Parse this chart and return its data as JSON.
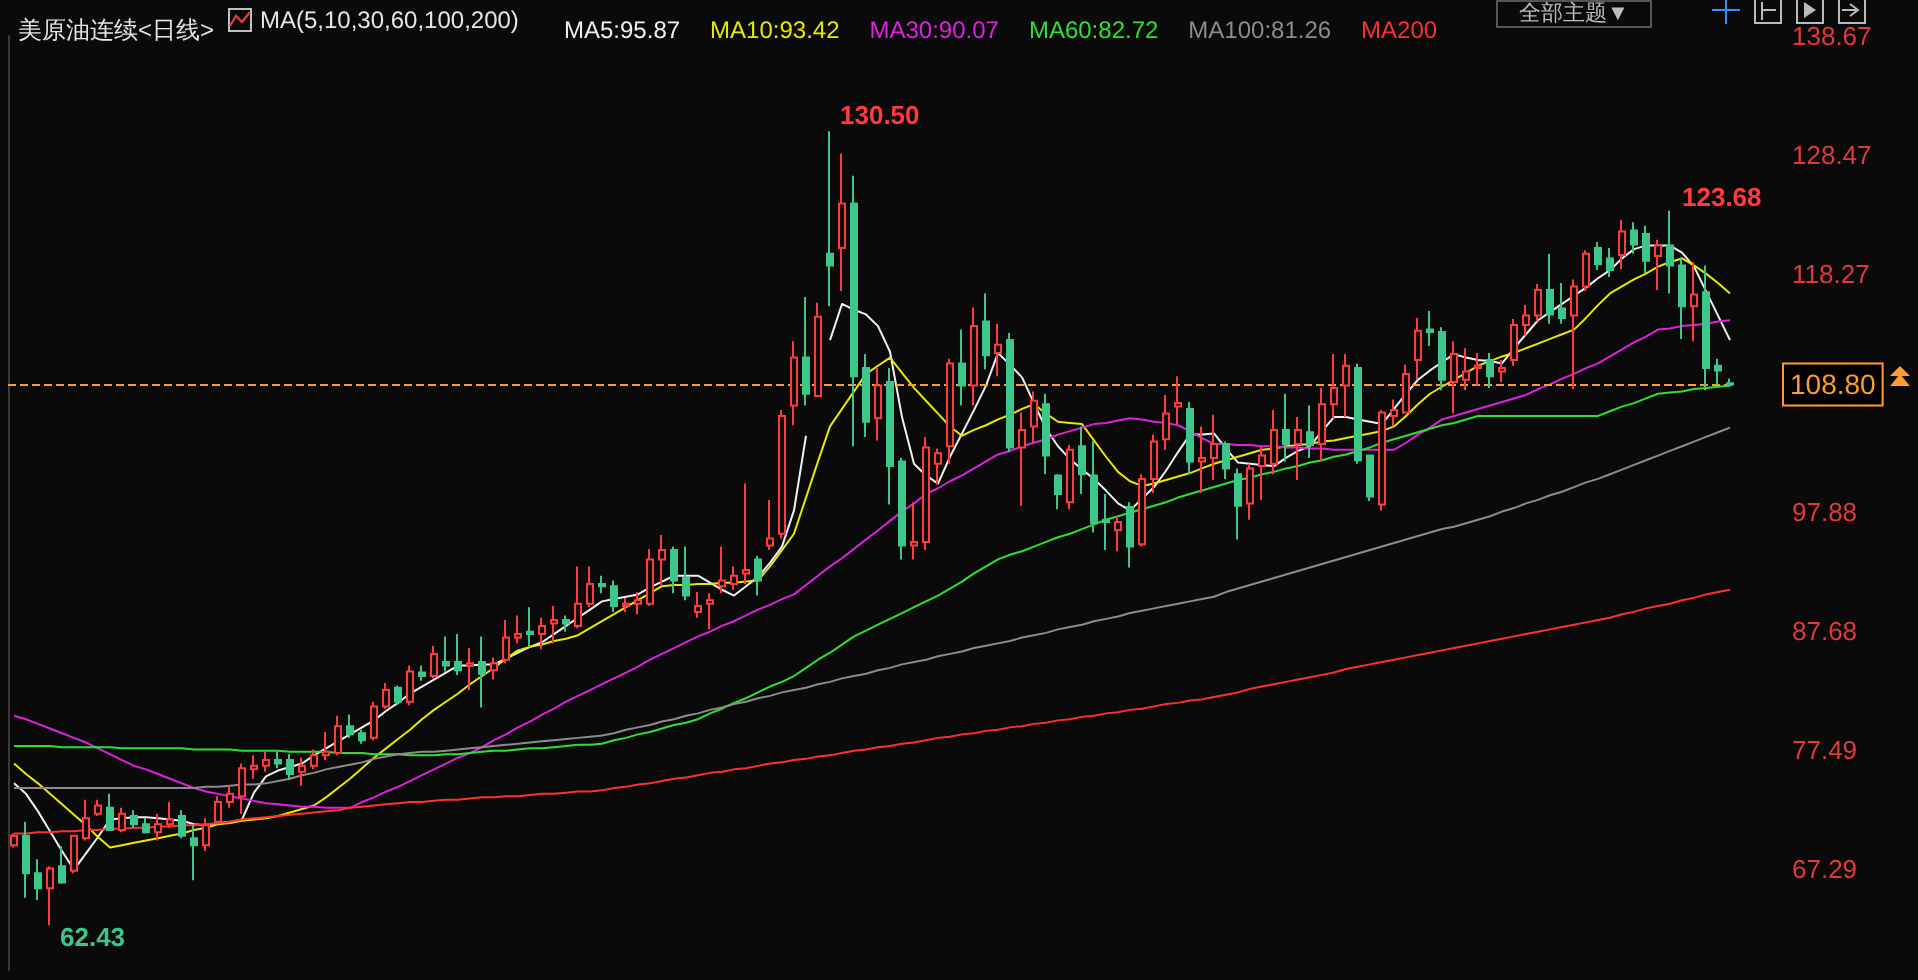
{
  "chart_data": {
    "type": "candlestick",
    "title": "美原油连续<日线>",
    "legend_title": "MA(5,10,30,60,100,200)",
    "legend": "top",
    "grid": false,
    "tick_labels": "y",
    "categories": [
      null,
      null,
      null,
      null,
      null,
      null,
      null,
      null,
      null,
      null,
      null,
      null,
      null,
      null,
      null,
      null,
      null,
      null,
      null,
      null,
      null,
      null,
      null,
      null,
      null,
      null,
      null,
      null,
      null,
      null,
      null,
      null,
      null,
      null,
      null,
      null,
      null,
      null,
      null,
      null,
      null,
      null,
      null,
      null,
      null,
      null,
      null,
      null,
      null,
      null,
      null,
      null,
      null,
      null,
      null,
      null,
      null,
      null,
      null,
      null,
      null,
      null,
      null,
      null,
      null,
      null,
      null,
      null,
      null,
      null,
      null,
      null,
      null,
      null,
      null,
      null,
      null,
      null,
      null,
      null,
      null,
      null,
      null,
      null,
      null,
      null,
      null,
      null,
      null,
      null,
      null,
      null,
      null,
      null,
      null,
      null,
      null,
      null,
      null,
      null,
      null,
      null,
      null,
      null,
      null,
      null,
      null,
      null,
      null,
      null,
      null,
      null,
      null,
      null,
      null,
      null,
      null,
      null,
      null,
      null,
      null,
      null,
      null,
      null,
      null,
      null,
      null,
      null,
      null,
      null,
      null,
      null,
      null,
      null,
      null,
      null,
      null,
      null,
      null,
      null,
      null,
      null,
      null,
      null
    ],
    "ylim": [
      58.6,
      138.67
    ],
    "yticks": [
      67.29,
      77.49,
      87.68,
      97.88,
      118.27,
      128.47,
      138.67
    ],
    "ohlc": [
      [
        69.3,
        70.3,
        69.1,
        70.1
      ],
      [
        70.1,
        71.3,
        64.8,
        66.9
      ],
      [
        66.9,
        68.1,
        64.6,
        65.6
      ],
      [
        65.6,
        67.5,
        62.43,
        67.3
      ],
      [
        67.5,
        69.2,
        66.0,
        66.1
      ],
      [
        67.1,
        70.1,
        66.9,
        70.1
      ],
      [
        69.9,
        73.2,
        69.7,
        71.6
      ],
      [
        72.0,
        73.2,
        71.8,
        72.7
      ],
      [
        72.5,
        73.7,
        70.6,
        70.6
      ],
      [
        70.6,
        72.5,
        70.4,
        72.0
      ],
      [
        71.8,
        72.3,
        70.8,
        71.1
      ],
      [
        71.1,
        71.6,
        70.3,
        70.4
      ],
      [
        70.4,
        72.0,
        69.7,
        71.1
      ],
      [
        71.1,
        73.0,
        70.8,
        71.5
      ],
      [
        71.8,
        72.3,
        69.9,
        70.1
      ],
      [
        69.9,
        71.0,
        66.3,
        69.3
      ],
      [
        69.3,
        71.6,
        68.8,
        71.0
      ],
      [
        71.3,
        73.5,
        71.1,
        73.0
      ],
      [
        73.0,
        74.4,
        72.5,
        73.7
      ],
      [
        73.5,
        76.3,
        72.0,
        75.9
      ],
      [
        75.8,
        77.0,
        75.0,
        76.1
      ],
      [
        76.1,
        77.3,
        75.6,
        76.6
      ],
      [
        76.6,
        77.3,
        75.9,
        76.3
      ],
      [
        76.6,
        77.1,
        74.9,
        75.4
      ],
      [
        75.6,
        76.8,
        74.4,
        76.1
      ],
      [
        76.1,
        77.5,
        75.8,
        77.0
      ],
      [
        77.0,
        79.0,
        76.6,
        77.3
      ],
      [
        77.2,
        80.4,
        77.0,
        79.5
      ],
      [
        79.5,
        80.5,
        78.5,
        78.8
      ],
      [
        78.9,
        79.2,
        78.0,
        78.3
      ],
      [
        78.5,
        81.6,
        78.3,
        81.2
      ],
      [
        81.2,
        83.2,
        81.0,
        82.6
      ],
      [
        82.8,
        83.0,
        81.3,
        81.6
      ],
      [
        81.6,
        84.7,
        81.3,
        84.2
      ],
      [
        84.1,
        84.7,
        83.4,
        83.8
      ],
      [
        83.8,
        86.4,
        83.6,
        85.7
      ],
      [
        85.0,
        87.2,
        84.2,
        84.7
      ],
      [
        85.0,
        87.4,
        83.9,
        84.3
      ],
      [
        84.7,
        86.2,
        82.6,
        84.9
      ],
      [
        85.0,
        87.2,
        81.1,
        84.0
      ],
      [
        84.3,
        85.4,
        83.5,
        84.9
      ],
      [
        85.2,
        88.6,
        84.9,
        87.1
      ],
      [
        87.1,
        89.0,
        86.6,
        87.4
      ],
      [
        87.6,
        89.7,
        86.3,
        87.4
      ],
      [
        87.4,
        88.8,
        86.1,
        88.1
      ],
      [
        88.3,
        89.8,
        86.6,
        88.6
      ],
      [
        88.6,
        89.0,
        87.6,
        88.3
      ],
      [
        88.1,
        93.2,
        87.9,
        90.0
      ],
      [
        90.0,
        93.2,
        89.7,
        91.7
      ],
      [
        91.7,
        92.4,
        90.9,
        91.5
      ],
      [
        91.5,
        92.0,
        89.3,
        89.8
      ],
      [
        89.8,
        90.5,
        89.3,
        90.0
      ],
      [
        90.0,
        91.0,
        89.1,
        90.3
      ],
      [
        90.0,
        94.7,
        89.8,
        93.8
      ],
      [
        93.8,
        95.9,
        91.6,
        94.6
      ],
      [
        94.6,
        94.9,
        90.9,
        92.0
      ],
      [
        92.2,
        94.9,
        90.3,
        90.7
      ],
      [
        89.3,
        91.0,
        88.8,
        89.8
      ],
      [
        90.0,
        90.9,
        87.8,
        90.3
      ],
      [
        91.5,
        94.9,
        90.9,
        92.0
      ],
      [
        91.7,
        93.2,
        91.2,
        92.4
      ],
      [
        92.6,
        100.3,
        91.7,
        92.9
      ],
      [
        93.8,
        94.1,
        90.7,
        92.0
      ],
      [
        95.0,
        98.9,
        94.6,
        95.6
      ],
      [
        96.0,
        106.6,
        95.6,
        106.1
      ],
      [
        107.0,
        112.5,
        105.3,
        111.1
      ],
      [
        111.1,
        116.3,
        107.0,
        108.0
      ],
      [
        107.8,
        115.8,
        107.8,
        114.6
      ],
      [
        120.0,
        130.5,
        115.5,
        119.0
      ],
      [
        120.5,
        128.6,
        116.8,
        124.3
      ],
      [
        124.3,
        126.7,
        103.5,
        109.5
      ],
      [
        110.2,
        111.4,
        104.3,
        105.6
      ],
      [
        105.9,
        110.2,
        104.0,
        108.7
      ],
      [
        109.0,
        110.2,
        98.5,
        101.8
      ],
      [
        102.2,
        102.5,
        93.8,
        95.0
      ],
      [
        95.0,
        98.7,
        93.8,
        95.3
      ],
      [
        95.3,
        104.3,
        94.6,
        103.4
      ],
      [
        102.0,
        103.3,
        100.2,
        102.9
      ],
      [
        103.5,
        111.0,
        102.0,
        110.6
      ],
      [
        110.6,
        113.5,
        107.0,
        108.7
      ],
      [
        108.7,
        115.4,
        107.0,
        113.8
      ],
      [
        114.2,
        116.6,
        110.1,
        111.3
      ],
      [
        111.5,
        114.0,
        109.5,
        112.2
      ],
      [
        112.6,
        113.2,
        103.0,
        103.4
      ],
      [
        103.4,
        106.4,
        98.4,
        104.9
      ],
      [
        105.2,
        108.2,
        103.8,
        107.4
      ],
      [
        107.1,
        108.0,
        101.1,
        102.7
      ],
      [
        101.0,
        101.1,
        98.1,
        99.4
      ],
      [
        98.7,
        103.6,
        98.1,
        103.2
      ],
      [
        103.5,
        105.2,
        99.4,
        101.1
      ],
      [
        101.0,
        104.0,
        96.1,
        96.9
      ],
      [
        97.2,
        99.4,
        94.6,
        97.0
      ],
      [
        96.3,
        97.5,
        94.5,
        97.0
      ],
      [
        98.3,
        98.7,
        93.1,
        94.9
      ],
      [
        95.1,
        101.1,
        94.9,
        100.7
      ],
      [
        100.7,
        104.5,
        99.5,
        103.9
      ],
      [
        104.1,
        107.9,
        103.2,
        106.3
      ],
      [
        106.9,
        109.5,
        105.4,
        107.2
      ],
      [
        106.7,
        107.3,
        101.1,
        102.2
      ],
      [
        102.2,
        105.2,
        99.5,
        102.5
      ],
      [
        102.5,
        106.2,
        100.6,
        103.7
      ],
      [
        103.7,
        103.9,
        100.7,
        101.6
      ],
      [
        101.1,
        101.6,
        95.5,
        98.4
      ],
      [
        98.6,
        102.0,
        97.2,
        101.6
      ],
      [
        101.8,
        103.5,
        98.9,
        102.7
      ],
      [
        102.0,
        106.6,
        101.1,
        104.9
      ],
      [
        104.9,
        108.0,
        102.2,
        103.7
      ],
      [
        103.7,
        106.0,
        100.6,
        104.9
      ],
      [
        104.7,
        107.0,
        102.5,
        103.6
      ],
      [
        103.7,
        108.5,
        102.2,
        107.1
      ],
      [
        107.1,
        111.4,
        105.9,
        108.5
      ],
      [
        108.7,
        111.4,
        106.0,
        110.4
      ],
      [
        110.2,
        110.6,
        102.0,
        102.3
      ],
      [
        102.7,
        102.7,
        98.8,
        99.2
      ],
      [
        98.5,
        106.6,
        98.0,
        106.4
      ],
      [
        106.1,
        107.5,
        105.2,
        106.6
      ],
      [
        106.4,
        110.5,
        106.3,
        109.7
      ],
      [
        110.9,
        114.5,
        109.2,
        113.4
      ],
      [
        113.5,
        115.1,
        112.1,
        113.3
      ],
      [
        113.3,
        113.7,
        108.3,
        109.2
      ],
      [
        109.0,
        112.5,
        106.3,
        111.4
      ],
      [
        109.2,
        111.9,
        108.3,
        109.9
      ],
      [
        110.2,
        111.5,
        108.7,
        110.4
      ],
      [
        110.9,
        111.5,
        108.5,
        109.5
      ],
      [
        109.9,
        110.9,
        109.0,
        110.2
      ],
      [
        110.9,
        114.4,
        110.4,
        113.9
      ],
      [
        113.9,
        115.6,
        113.0,
        114.7
      ],
      [
        114.7,
        117.4,
        114.2,
        116.9
      ],
      [
        116.9,
        120.0,
        114.0,
        114.8
      ],
      [
        115.3,
        117.5,
        114.0,
        114.5
      ],
      [
        114.7,
        117.8,
        108.4,
        117.2
      ],
      [
        117.2,
        120.3,
        116.8,
        120.0
      ],
      [
        120.5,
        121.0,
        118.6,
        119.1
      ],
      [
        119.6,
        120.5,
        118.0,
        118.6
      ],
      [
        119.9,
        122.9,
        118.7,
        121.9
      ],
      [
        122.0,
        122.7,
        120.0,
        120.8
      ],
      [
        121.7,
        122.4,
        118.3,
        119.4
      ],
      [
        119.8,
        121.2,
        116.9,
        120.7
      ],
      [
        120.7,
        123.68,
        116.6,
        119.0
      ],
      [
        119.0,
        119.7,
        112.7,
        115.5
      ],
      [
        115.5,
        119.3,
        112.5,
        116.5
      ],
      [
        116.7,
        119.0,
        108.3,
        110.2
      ],
      [
        110.4,
        111.0,
        108.8,
        110.0
      ],
      [
        108.9,
        109.3,
        108.6,
        108.8
      ]
    ],
    "colors": [
      "#ff3b3b",
      "#3cc68a",
      "#3cc68a",
      "#ff3b3b",
      "#3cc68a",
      "#ff3b3b",
      "#ff3b3b",
      "#ff3b3b",
      "#3cc68a",
      "#ff3b3b",
      "#3cc68a",
      "#3cc68a",
      "#ff3b3b",
      "#ff3b3b",
      "#3cc68a",
      "#3cc68a",
      "#ff3b3b",
      "#ff3b3b",
      "#ff3b3b",
      "#ff3b3b",
      "#ff3b3b",
      "#ff3b3b",
      "#3cc68a",
      "#3cc68a",
      "#ff3b3b",
      "#ff3b3b",
      "#ff3b3b",
      "#ff3b3b",
      "#3cc68a",
      "#3cc68a",
      "#ff3b3b",
      "#ff3b3b",
      "#3cc68a",
      "#ff3b3b",
      "#3cc68a",
      "#ff3b3b",
      "#3cc68a",
      "#3cc68a",
      "#ff3b3b",
      "#3cc68a",
      "#ff3b3b",
      "#ff3b3b",
      "#ff3b3b",
      "#3cc68a",
      "#ff3b3b",
      "#ff3b3b",
      "#3cc68a",
      "#ff3b3b",
      "#ff3b3b",
      "#3cc68a",
      "#3cc68a",
      "#ff3b3b",
      "#ff3b3b",
      "#ff3b3b",
      "#ff3b3b",
      "#3cc68a",
      "#3cc68a",
      "#ff3b3b",
      "#ff3b3b",
      "#ff3b3b",
      "#ff3b3b",
      "#ff3b3b",
      "#3cc68a",
      "#ff3b3b",
      "#ff3b3b",
      "#ff3b3b",
      "#3cc68a",
      "#ff3b3b",
      "#3cc68a",
      "#ff3b3b",
      "#3cc68a",
      "#3cc68a",
      "#ff3b3b",
      "#3cc68a",
      "#3cc68a",
      "#ff3b3b",
      "#ff3b3b",
      "#ff3b3b",
      "#ff3b3b",
      "#3cc68a",
      "#ff3b3b",
      "#3cc68a",
      "#ff3b3b",
      "#3cc68a",
      "#ff3b3b",
      "#ff3b3b",
      "#3cc68a",
      "#3cc68a",
      "#ff3b3b",
      "#3cc68a",
      "#3cc68a",
      "#3cc68a",
      "#ff3b3b",
      "#3cc68a",
      "#ff3b3b",
      "#ff3b3b",
      "#ff3b3b",
      "#ff3b3b",
      "#3cc68a",
      "#ff3b3b",
      "#ff3b3b",
      "#3cc68a",
      "#3cc68a",
      "#ff3b3b",
      "#ff3b3b",
      "#ff3b3b",
      "#3cc68a",
      "#ff3b3b",
      "#3cc68a",
      "#ff3b3b",
      "#ff3b3b",
      "#ff3b3b",
      "#3cc68a",
      "#3cc68a",
      "#ff3b3b",
      "#ff3b3b",
      "#ff3b3b",
      "#ff3b3b",
      "#3cc68a",
      "#3cc68a",
      "#ff3b3b",
      "#ff3b3b",
      "#ff3b3b",
      "#3cc68a",
      "#ff3b3b",
      "#ff3b3b",
      "#ff3b3b",
      "#ff3b3b",
      "#3cc68a",
      "#3cc68a",
      "#ff3b3b",
      "#ff3b3b",
      "#3cc68a",
      "#3cc68a",
      "#ff3b3b",
      "#3cc68a",
      "#3cc68a",
      "#ff3b3b",
      "#3cc68a",
      "#3cc68a",
      "#ff3b3b",
      "#3cc68a",
      "#3cc68a",
      "#3cc68a"
    ],
    "series": [
      {
        "type": "line",
        "name": "MA5:95.87",
        "color": "#f0f0f0",
        "values": [
          74.6,
          73.7,
          72.2,
          70.5,
          68.8,
          67.2,
          68.6,
          70.0,
          71.5,
          71.6,
          71.7,
          71.7,
          71.6,
          71.5,
          71.4,
          71.1,
          71.0,
          71.2,
          71.3,
          71.5,
          73.8,
          75.2,
          75.7,
          76.0,
          76.3,
          77.0,
          77.6,
          78.2,
          78.8,
          79.4,
          80.0,
          80.8,
          81.5,
          82.3,
          82.9,
          83.5,
          84.1,
          84.7,
          84.7,
          84.8,
          84.8,
          85.3,
          85.8,
          86.3,
          86.7,
          87.4,
          88.1,
          88.8,
          89.5,
          90.2,
          90.4,
          90.6,
          90.8,
          91.4,
          91.9,
          92.4,
          92.4,
          92.4,
          91.8,
          91.2,
          90.7,
          91.5,
          92.3,
          93.5,
          94.9,
          98.0,
          104.4,
          null,
          112.6,
          115.7,
          115.2,
          114.8,
          113.8,
          111.6,
          106.0,
          102.0,
          101.0,
          100.3,
          102.6,
          104.6,
          106.6,
          108.7,
          111.5,
          110.5,
          109.4,
          107.2,
          105.0,
          103.5,
          102.4,
          101.5,
          100.7,
          99.7,
          98.6,
          98.0,
          99.0,
          100.0,
          101.4,
          103.0,
          104.5,
          104.5,
          104.6,
          103.3,
          102.1,
          102.0,
          101.9,
          101.8,
          102.5,
          103.1,
          103.5,
          104.8,
          106.0,
          106.0,
          105.8,
          105.6,
          105.4,
          106.7,
          108.0,
          109.2,
          110.0,
          110.7,
          111.4,
          111.1,
          110.9,
          110.8,
          110.6,
          111.9,
          113.1,
          114.3,
          115.0,
          115.7,
          116.4,
          117.1,
          117.9,
          118.6,
          119.6,
          120.4,
          120.7,
          120.7,
          120.7,
          120.1,
          118.9,
          116.8,
          114.7,
          112.6
        ]
      },
      {
        "type": "line",
        "name": "MA10:93.42",
        "color": "#e8e800",
        "values": [
          76.3,
          75.4,
          74.6,
          73.7,
          72.8,
          71.9,
          71.0,
          70.0,
          69.1,
          69.3,
          69.5,
          69.7,
          69.9,
          70.1,
          70.3,
          70.6,
          70.8,
          71.1,
          71.2,
          71.4,
          71.5,
          71.6,
          71.8,
          72.1,
          72.4,
          72.7,
          73.4,
          74.2,
          75.0,
          75.9,
          76.8,
          77.6,
          78.4,
          79.2,
          80.1,
          80.9,
          81.6,
          82.3,
          83.1,
          83.8,
          84.5,
          85.3,
          86.0,
          86.3,
          86.5,
          86.8,
          87.0,
          87.3,
          87.9,
          88.5,
          89.1,
          89.7,
          90.3,
          90.9,
          91.5,
          91.6,
          91.6,
          91.7,
          91.7,
          91.8,
          91.8,
          91.9,
          92.0,
          93.2,
          94.6,
          96.0,
          99.1,
          102.2,
          105.2,
          106.7,
          108.2,
          109.7,
          110.4,
          111.1,
          109.8,
          108.5,
          107.4,
          106.3,
          105.2,
          104.4,
          104.9,
          105.3,
          105.8,
          106.2,
          106.7,
          107.1,
          106.3,
          105.6,
          105.5,
          105.4,
          104.0,
          102.6,
          101.3,
          100.5,
          100.1,
          100.3,
          100.6,
          100.9,
          101.2,
          101.6,
          102.0,
          102.3,
          102.6,
          102.9,
          103.2,
          103.3,
          103.5,
          103.6,
          103.7,
          103.9,
          104.0,
          104.2,
          104.4,
          104.6,
          104.8,
          105.2,
          106.1,
          107.1,
          108.0,
          108.6,
          109.2,
          109.8,
          110.4,
          110.8,
          111.2,
          111.5,
          111.9,
          112.3,
          112.7,
          113.1,
          113.5,
          114.5,
          115.6,
          116.6,
          117.2,
          117.8,
          118.3,
          118.9,
          119.3,
          119.6,
          119.0,
          118.3,
          117.5,
          116.6
        ]
      },
      {
        "type": "line",
        "name": "MA30:90.07",
        "color": "#e020e0",
        "values": [
          80.4,
          80.1,
          79.7,
          79.3,
          78.9,
          78.5,
          78.1,
          77.6,
          77.1,
          76.6,
          76.1,
          75.8,
          75.4,
          75.0,
          74.6,
          74.2,
          73.9,
          73.7,
          73.5,
          73.3,
          73.1,
          72.9,
          72.8,
          72.7,
          72.6,
          72.6,
          72.5,
          72.5,
          72.5,
          73.0,
          73.4,
          73.9,
          74.3,
          74.8,
          75.3,
          75.8,
          76.3,
          76.8,
          77.2,
          77.7,
          78.3,
          78.8,
          79.4,
          79.9,
          80.5,
          81.0,
          81.6,
          82.1,
          82.6,
          83.1,
          83.6,
          84.1,
          84.6,
          85.2,
          85.7,
          86.2,
          86.7,
          87.2,
          87.6,
          88.1,
          88.5,
          89.0,
          89.5,
          89.9,
          90.4,
          90.8,
          91.6,
          92.4,
          93.2,
          93.9,
          94.7,
          95.5,
          96.3,
          97.1,
          97.9,
          98.6,
          99.4,
          99.9,
          100.5,
          101.0,
          101.6,
          102.2,
          102.8,
          103.1,
          103.5,
          103.8,
          104.1,
          104.5,
          104.8,
          105.1,
          105.4,
          105.5,
          105.7,
          105.9,
          105.8,
          105.6,
          105.5,
          105.3,
          104.8,
          104.2,
          103.7,
          103.7,
          103.6,
          103.6,
          103.5,
          103.5,
          103.4,
          103.4,
          103.3,
          103.3,
          103.2,
          103.2,
          103.2,
          103.2,
          103.2,
          103.2,
          103.8,
          104.5,
          105.1,
          105.8,
          106.1,
          106.4,
          106.7,
          107.0,
          107.3,
          107.6,
          107.9,
          108.4,
          108.8,
          109.3,
          109.7,
          110.2,
          110.6,
          111.2,
          111.8,
          112.4,
          112.9,
          113.5,
          113.6,
          113.8,
          113.9,
          114.0,
          114.2,
          114.3
        ]
      },
      {
        "type": "line",
        "name": "MA60:82.72",
        "color": "#30e030",
        "values": [
          77.8,
          77.8,
          77.8,
          77.8,
          77.7,
          77.7,
          77.7,
          77.7,
          77.7,
          77.6,
          77.6,
          77.6,
          77.6,
          77.6,
          77.6,
          77.5,
          77.5,
          77.5,
          77.5,
          77.4,
          77.4,
          77.4,
          77.4,
          77.3,
          77.3,
          77.3,
          77.3,
          77.2,
          77.2,
          77.2,
          77.1,
          77.1,
          77.1,
          77.0,
          77.0,
          77.0,
          77.1,
          77.1,
          77.2,
          77.3,
          77.4,
          77.4,
          77.5,
          77.6,
          77.6,
          77.7,
          77.8,
          77.9,
          77.9,
          78.0,
          78.3,
          78.5,
          78.8,
          79.0,
          79.3,
          79.6,
          79.8,
          80.1,
          80.6,
          81.0,
          81.5,
          81.9,
          82.4,
          82.9,
          83.3,
          83.8,
          84.5,
          85.2,
          85.8,
          86.5,
          87.2,
          87.7,
          88.2,
          88.7,
          89.2,
          89.7,
          90.2,
          90.7,
          91.3,
          91.9,
          92.6,
          93.2,
          93.8,
          94.2,
          94.5,
          94.9,
          95.3,
          95.7,
          96.0,
          96.4,
          96.8,
          97.2,
          97.5,
          97.8,
          98.1,
          98.4,
          98.7,
          99.1,
          99.4,
          99.7,
          100.0,
          100.3,
          100.6,
          100.8,
          101.1,
          101.3,
          101.6,
          101.8,
          102.1,
          102.3,
          102.6,
          102.8,
          103.1,
          103.4,
          103.8,
          104.1,
          104.4,
          104.7,
          105.0,
          105.3,
          105.5,
          105.8,
          106.1,
          106.1,
          106.1,
          106.1,
          106.1,
          106.1,
          106.1,
          106.1,
          106.1,
          106.1,
          106.1,
          106.5,
          106.9,
          107.2,
          107.6,
          108.0,
          108.1,
          108.2,
          108.4,
          108.5,
          108.6,
          108.7
        ]
      },
      {
        "type": "line",
        "name": "MA100:81.26",
        "color": "#8c8c8c",
        "values": [
          74.2,
          74.2,
          74.2,
          74.2,
          74.2,
          74.2,
          74.2,
          74.2,
          74.2,
          74.2,
          74.2,
          74.2,
          74.2,
          74.2,
          74.2,
          74.2,
          74.3,
          74.3,
          74.4,
          74.5,
          74.5,
          74.6,
          74.8,
          75.0,
          75.3,
          75.5,
          75.8,
          76.0,
          76.2,
          76.4,
          76.7,
          76.9,
          77.1,
          77.2,
          77.3,
          77.3,
          77.4,
          77.5,
          77.6,
          77.7,
          77.8,
          77.9,
          78.0,
          78.1,
          78.2,
          78.3,
          78.4,
          78.5,
          78.6,
          78.7,
          78.9,
          79.2,
          79.4,
          79.6,
          79.9,
          80.1,
          80.4,
          80.6,
          80.9,
          81.1,
          81.4,
          81.6,
          81.9,
          82.1,
          82.4,
          82.6,
          82.8,
          83.1,
          83.3,
          83.6,
          83.8,
          84.0,
          84.3,
          84.5,
          84.8,
          85.0,
          85.2,
          85.5,
          85.7,
          85.9,
          86.2,
          86.4,
          86.6,
          86.8,
          87.1,
          87.3,
          87.5,
          87.8,
          88.0,
          88.2,
          88.5,
          88.7,
          88.9,
          89.2,
          89.4,
          89.6,
          89.8,
          90.0,
          90.2,
          90.4,
          90.6,
          91.0,
          91.3,
          91.6,
          91.9,
          92.2,
          92.5,
          92.8,
          93.1,
          93.4,
          93.7,
          94.0,
          94.3,
          94.6,
          94.9,
          95.2,
          95.5,
          95.8,
          96.1,
          96.4,
          96.6,
          96.9,
          97.2,
          97.5,
          97.9,
          98.2,
          98.6,
          98.9,
          99.3,
          99.6,
          100.0,
          100.4,
          100.7,
          101.1,
          101.5,
          101.9,
          102.3,
          102.7,
          103.1,
          103.5,
          103.9,
          104.3,
          104.7,
          105.1
        ]
      },
      {
        "type": "line",
        "name": "MA200",
        "color": "#ff3030",
        "values": [
          70.3,
          70.3,
          70.4,
          70.4,
          70.5,
          70.5,
          70.6,
          70.6,
          70.7,
          70.7,
          70.8,
          70.8,
          70.9,
          70.9,
          71.0,
          71.0,
          71.1,
          71.2,
          71.3,
          71.5,
          71.6,
          71.7,
          71.8,
          71.9,
          72.0,
          72.1,
          72.2,
          72.3,
          72.5,
          72.6,
          72.7,
          72.8,
          72.9,
          73.0,
          73.0,
          73.1,
          73.2,
          73.2,
          73.3,
          73.4,
          73.4,
          73.5,
          73.5,
          73.6,
          73.7,
          73.7,
          73.8,
          73.9,
          73.9,
          74.0,
          74.2,
          74.3,
          74.5,
          74.6,
          74.8,
          75.0,
          75.1,
          75.3,
          75.5,
          75.6,
          75.8,
          75.9,
          76.1,
          76.3,
          76.4,
          76.6,
          76.7,
          76.9,
          77.0,
          77.2,
          77.4,
          77.5,
          77.7,
          77.8,
          78.0,
          78.1,
          78.3,
          78.5,
          78.6,
          78.8,
          78.9,
          79.1,
          79.2,
          79.4,
          79.5,
          79.7,
          79.8,
          80.0,
          80.1,
          80.3,
          80.4,
          80.6,
          80.7,
          80.9,
          81.0,
          81.2,
          81.4,
          81.5,
          81.7,
          81.8,
          82.0,
          82.2,
          82.4,
          82.7,
          82.9,
          83.1,
          83.3,
          83.5,
          83.7,
          83.9,
          84.1,
          84.4,
          84.6,
          84.8,
          85.0,
          85.2,
          85.4,
          85.6,
          85.8,
          86.0,
          86.2,
          86.4,
          86.6,
          86.8,
          87.0,
          87.2,
          87.4,
          87.6,
          87.8,
          88.0,
          88.2,
          88.4,
          88.6,
          88.8,
          89.1,
          89.3,
          89.6,
          89.8,
          90.0,
          90.3,
          90.5,
          90.8,
          91.0,
          91.2
        ]
      }
    ],
    "ref_lines": [
      {
        "axis": "y",
        "value": 108.8,
        "label": "108.80",
        "color": "#ff9c2a",
        "line_style": "dashed"
      }
    ],
    "annotations": [
      "130.50",
      "123.68",
      "62.43",
      "全部主题▼"
    ]
  }
}
